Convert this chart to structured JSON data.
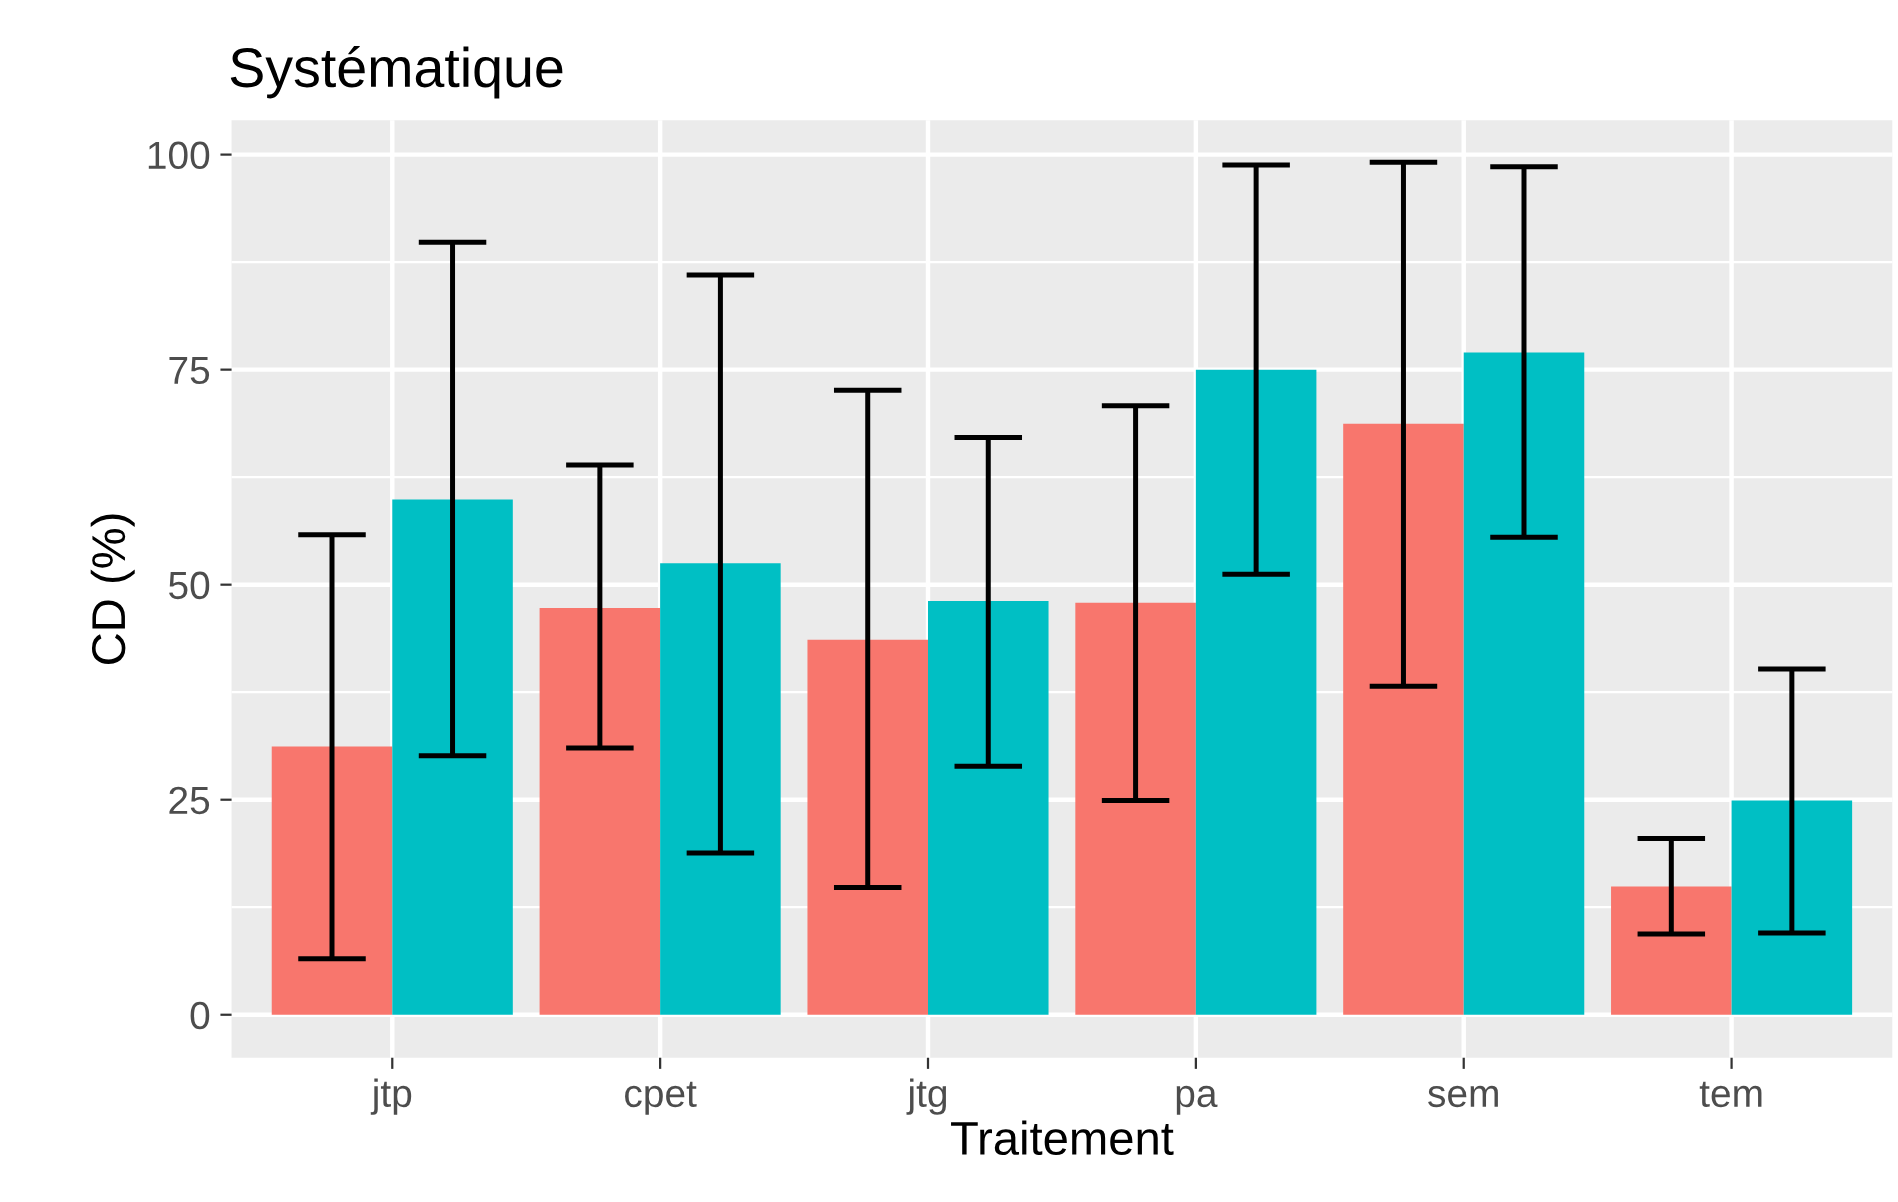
{
  "chart_data": {
    "type": "bar",
    "title": "Systématique",
    "xlabel": "Traitement",
    "ylabel": "CD (%)",
    "categories": [
      "jtp",
      "cpet",
      "jtg",
      "pa",
      "sem",
      "tem"
    ],
    "series": [
      {
        "color": "#f8766d",
        "values": [
          31.2,
          47.3,
          43.6,
          47.9,
          68.7,
          14.9
        ],
        "errors": [
          [
            6.5,
            55.8
          ],
          [
            31.0,
            63.9
          ],
          [
            14.8,
            72.6
          ],
          [
            24.9,
            70.8
          ],
          [
            38.2,
            99.1
          ],
          [
            9.4,
            20.5
          ]
        ]
      },
      {
        "color": "#00bfc4",
        "values": [
          59.9,
          52.5,
          48.1,
          75.0,
          77.0,
          24.9
        ],
        "errors": [
          [
            30.1,
            89.8
          ],
          [
            18.8,
            86.0
          ],
          [
            28.9,
            67.1
          ],
          [
            51.2,
            98.8
          ],
          [
            55.5,
            98.6
          ],
          [
            9.5,
            40.2
          ]
        ]
      }
    ],
    "ylim": [
      -5,
      104
    ],
    "yticks": [
      0,
      25,
      50,
      75,
      100
    ],
    "grid": true
  }
}
